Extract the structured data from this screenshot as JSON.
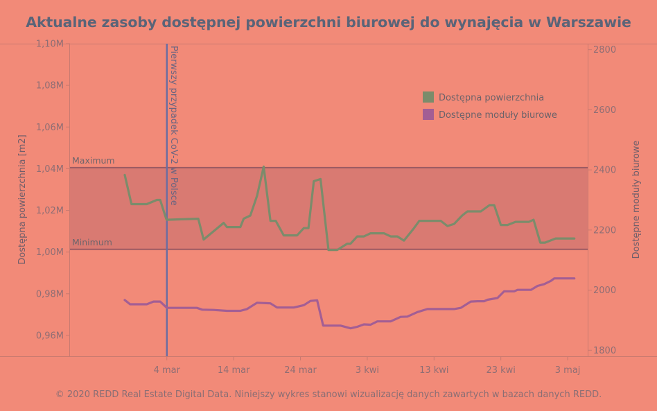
{
  "chart_data": {
    "type": "line",
    "title": "Aktualne zasoby dostępnej powierzchni biurowej do wynajęcia w Warszawie",
    "ylabel": "Dostępna powierzchnia [m2]",
    "y2label": "Dostępne moduły biurowe",
    "ylim": [
      0.95,
      1.1
    ],
    "y2lim": [
      1780,
      2820
    ],
    "xlim": [
      -11.5,
      66
    ],
    "x_ticks": [
      {
        "day": 3,
        "label": "4 mar"
      },
      {
        "day": 13,
        "label": "14 mar"
      },
      {
        "day": 23,
        "label": "24 mar"
      },
      {
        "day": 33,
        "label": "3 kwi"
      },
      {
        "day": 43,
        "label": "13 kwi"
      },
      {
        "day": 53,
        "label": "23 kwi"
      },
      {
        "day": 63,
        "label": "3 maj"
      }
    ],
    "y_ticks": [
      {
        "v": 0.96,
        "label": "0,96M"
      },
      {
        "v": 0.98,
        "label": "0,98M"
      },
      {
        "v": 1.0,
        "label": "1,00M"
      },
      {
        "v": 1.02,
        "label": "1,02M"
      },
      {
        "v": 1.04,
        "label": "1,04M"
      },
      {
        "v": 1.06,
        "label": "1,06M"
      },
      {
        "v": 1.08,
        "label": "1,08M"
      },
      {
        "v": 1.1,
        "label": "1,10M"
      }
    ],
    "y2_ticks": [
      {
        "v": 1800,
        "label": "1800"
      },
      {
        "v": 2000,
        "label": "2000"
      },
      {
        "v": 2200,
        "label": "2200"
      },
      {
        "v": 2400,
        "label": "2400"
      },
      {
        "v": 2600,
        "label": "2600"
      },
      {
        "v": 2800,
        "label": "2800"
      }
    ],
    "band": {
      "min": 1.0013,
      "max": 1.0405,
      "min_label": "Minimum",
      "max_label": "Maximum"
    },
    "event": {
      "day": 3,
      "label": "Pierwszy przypadek CoV-2 w Polsce"
    },
    "legend_position": "top-right",
    "series": [
      {
        "name": "Dostępna powierzchnia",
        "axis": "left",
        "color": "#7b8c6b",
        "points": [
          [
            -3.3,
            1.037
          ],
          [
            -2.3,
            1.023
          ],
          [
            0,
            1.023
          ],
          [
            1.5,
            1.025
          ],
          [
            2,
            1.025
          ],
          [
            2.9,
            1.016
          ],
          [
            3,
            1.0155
          ],
          [
            7.7,
            1.016
          ],
          [
            8.5,
            1.006
          ],
          [
            11.5,
            1.014
          ],
          [
            12,
            1.012
          ],
          [
            14,
            1.012
          ],
          [
            14.5,
            1.016
          ],
          [
            15.5,
            1.0175
          ],
          [
            16.5,
            1.027
          ],
          [
            17.5,
            1.041
          ],
          [
            18.5,
            1.015
          ],
          [
            19.3,
            1.015
          ],
          [
            20.5,
            1.008
          ],
          [
            22.5,
            1.008
          ],
          [
            23.5,
            1.0115
          ],
          [
            24.2,
            1.0115
          ],
          [
            25,
            1.034
          ],
          [
            26,
            1.035
          ],
          [
            27.2,
            1.001
          ],
          [
            28.5,
            1.001
          ],
          [
            30,
            1.004
          ],
          [
            30.5,
            1.004
          ],
          [
            31.5,
            1.0075
          ],
          [
            32.5,
            1.0075
          ],
          [
            33.5,
            1.009
          ],
          [
            35.5,
            1.009
          ],
          [
            36.5,
            1.0075
          ],
          [
            37.5,
            1.0075
          ],
          [
            38.5,
            1.0055
          ],
          [
            40,
            1.0115
          ],
          [
            40.8,
            1.015
          ],
          [
            44,
            1.015
          ],
          [
            45,
            1.0125
          ],
          [
            46,
            1.0135
          ],
          [
            47.2,
            1.0175
          ],
          [
            48,
            1.0195
          ],
          [
            50,
            1.0195
          ],
          [
            51.3,
            1.0225
          ],
          [
            52,
            1.0225
          ],
          [
            53,
            1.013
          ],
          [
            54,
            1.013
          ],
          [
            55.2,
            1.0145
          ],
          [
            57.2,
            1.0145
          ],
          [
            57.9,
            1.0155
          ],
          [
            58.9,
            1.0045
          ],
          [
            59.6,
            1.0045
          ],
          [
            61.2,
            1.0065
          ],
          [
            64,
            1.0065
          ]
        ]
      },
      {
        "name": "Dostępne moduły biurowe",
        "axis": "right",
        "color": "#a35e94",
        "points": [
          [
            -3.3,
            1967
          ],
          [
            -2.5,
            1953
          ],
          [
            0,
            1953
          ],
          [
            1,
            1962
          ],
          [
            2,
            1962
          ],
          [
            3,
            1941
          ],
          [
            7.5,
            1941
          ],
          [
            8.3,
            1935
          ],
          [
            10,
            1934
          ],
          [
            12,
            1931
          ],
          [
            14,
            1931
          ],
          [
            15,
            1937
          ],
          [
            16.5,
            1958
          ],
          [
            18.5,
            1956
          ],
          [
            19.5,
            1942
          ],
          [
            22,
            1942
          ],
          [
            23.5,
            1950
          ],
          [
            24.5,
            1964
          ],
          [
            25.5,
            1966
          ],
          [
            26.4,
            1882
          ],
          [
            29,
            1882
          ],
          [
            30.5,
            1873
          ],
          [
            31.5,
            1878
          ],
          [
            32.5,
            1886
          ],
          [
            33.5,
            1885
          ],
          [
            34.5,
            1896
          ],
          [
            36.5,
            1896
          ],
          [
            38,
            1911
          ],
          [
            39,
            1912
          ],
          [
            40.5,
            1927
          ],
          [
            42,
            1937
          ],
          [
            46,
            1937
          ],
          [
            47,
            1941
          ],
          [
            48.5,
            1962
          ],
          [
            49.5,
            1963
          ],
          [
            50.5,
            1963
          ],
          [
            51,
            1968
          ],
          [
            52.5,
            1974
          ],
          [
            53.5,
            1996
          ],
          [
            55,
            1996
          ],
          [
            55.5,
            2001
          ],
          [
            57.5,
            2001
          ],
          [
            58.5,
            2014
          ],
          [
            59.5,
            2020
          ],
          [
            60.5,
            2031
          ],
          [
            61,
            2039
          ],
          [
            64,
            2039
          ]
        ]
      }
    ]
  }
}
